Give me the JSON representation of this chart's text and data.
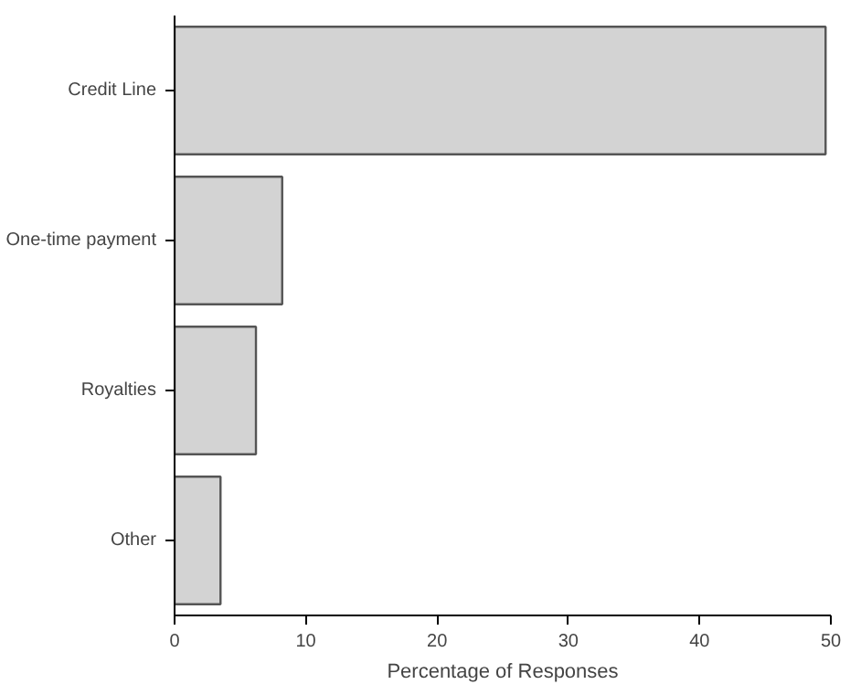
{
  "chart_data": {
    "type": "bar",
    "orientation": "horizontal",
    "xlabel": "Percentage of Responses",
    "categories": [
      "Credit Line",
      "One-time payment",
      "Royalties",
      "Other"
    ],
    "values": [
      49.6,
      8.2,
      6.2,
      3.5
    ],
    "color": "#d3d3d3",
    "xlim": [
      0,
      50
    ],
    "xticks": [
      0,
      10,
      20,
      30,
      40,
      50
    ],
    "grid": false
  }
}
